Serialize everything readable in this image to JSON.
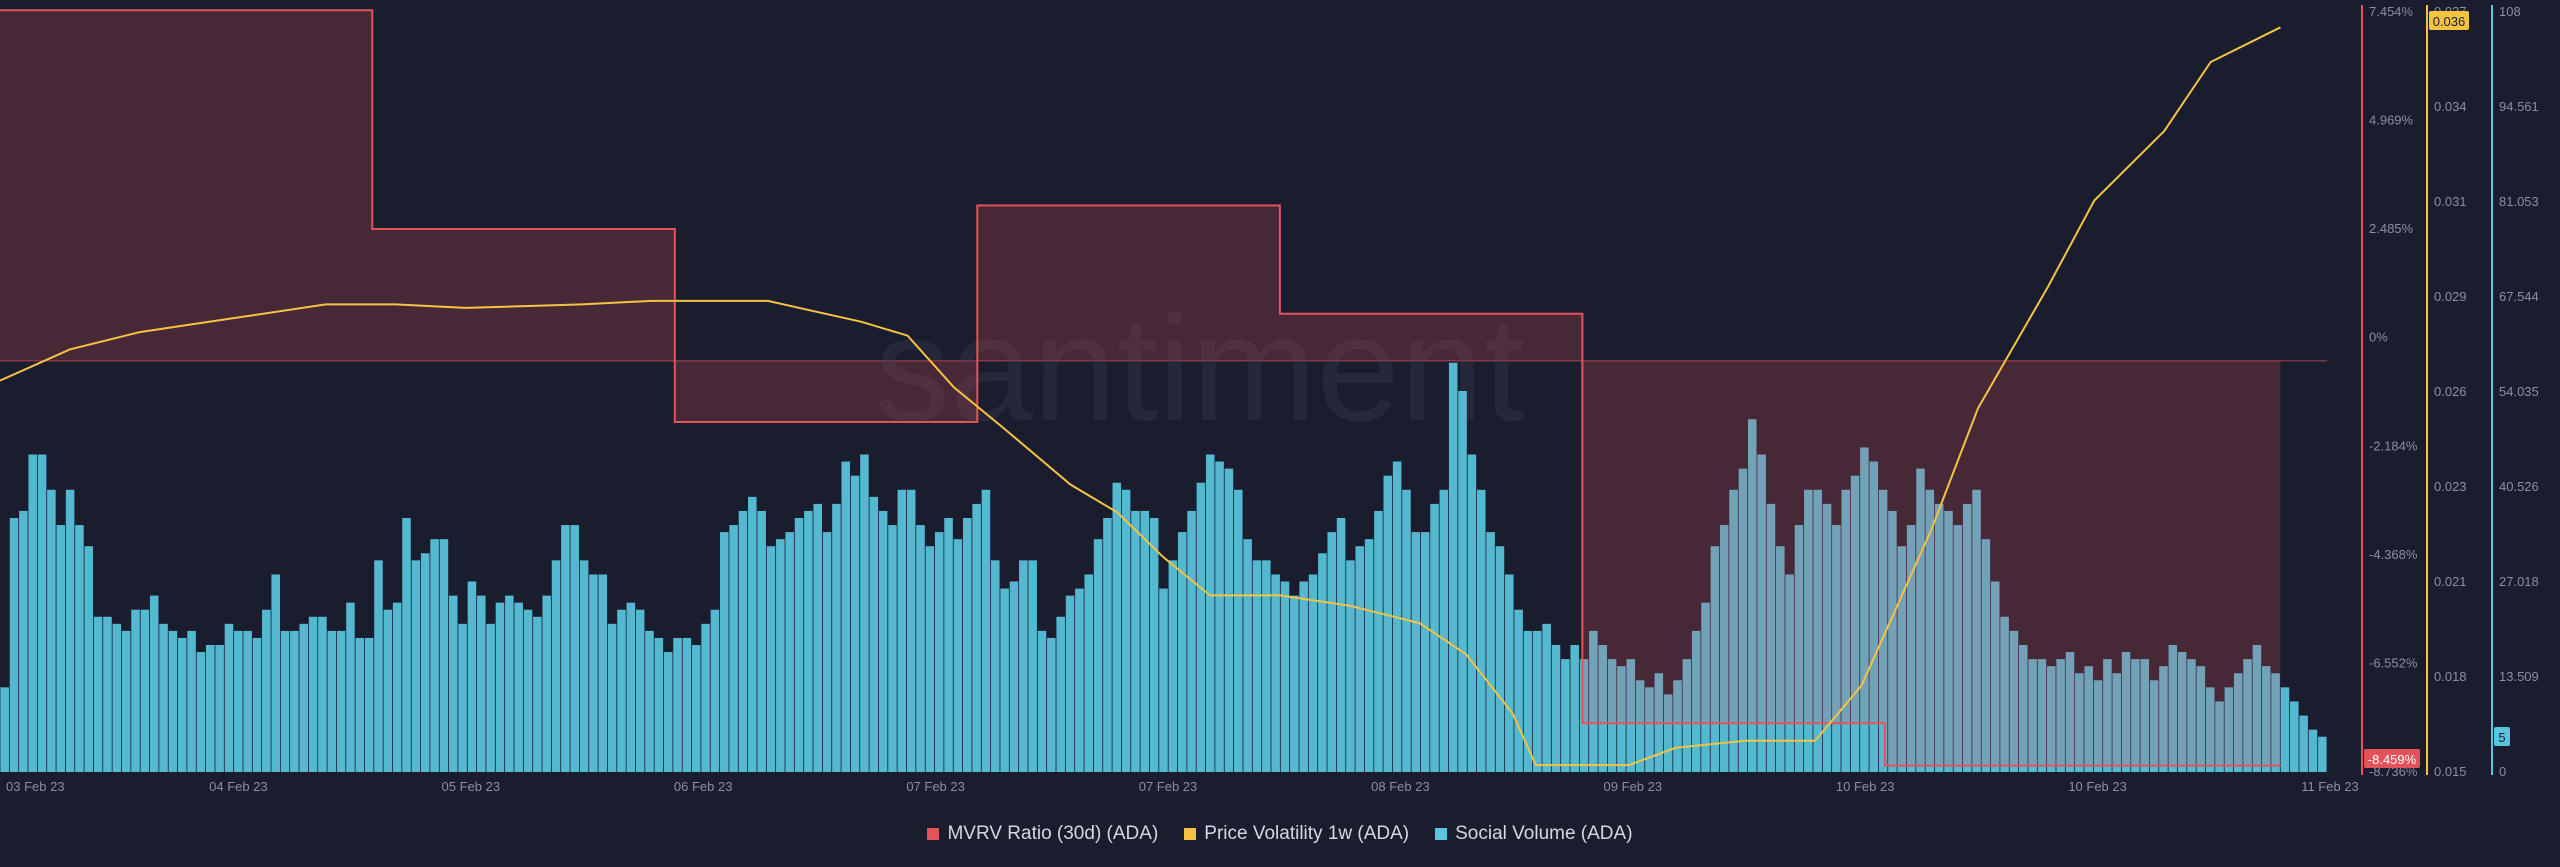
{
  "chart_data": {
    "type": "bar+line",
    "watermark": "santiment",
    "x_ticks": [
      "03 Feb 23",
      "04 Feb 23",
      "05 Feb 23",
      "06 Feb 23",
      "07 Feb 23",
      "07 Feb 23",
      "08 Feb 23",
      "09 Feb 23",
      "10 Feb 23",
      "10 Feb 23",
      "11 Feb 23"
    ],
    "axes": {
      "mvrv": {
        "ticks": [
          "7.454%",
          "4.969%",
          "2.485%",
          "0%",
          "-2.184%",
          "-4.368%",
          "-6.552%",
          "-8.736%"
        ],
        "range": [
          -8.736,
          7.454
        ],
        "current_label": "-8.459%",
        "color": "#e5535a"
      },
      "volatility": {
        "ticks": [
          "0.037",
          "0.034",
          "0.031",
          "0.029",
          "0.026",
          "0.023",
          "0.021",
          "0.018",
          "0.015"
        ],
        "range": [
          0.015,
          0.037
        ],
        "current_label": "0.036",
        "color": "#f5c344"
      },
      "social": {
        "ticks": [
          "108",
          "94.561",
          "81.053",
          "67.544",
          "54.035",
          "40.526",
          "27.018",
          "13.509",
          "0"
        ],
        "range": [
          0,
          108
        ],
        "current_label": "5",
        "color": "#59c6e0"
      }
    },
    "series": [
      {
        "name": "MVRV Ratio (30d) (ADA)",
        "type": "step-area",
        "color": "#e5535a",
        "x": [
          0,
          0.16,
          0.16,
          0.29,
          0.29,
          0.42,
          0.42,
          0.55,
          0.55,
          0.68,
          0.68,
          0.81,
          0.81,
          0.98
        ],
        "values": [
          7.45,
          7.45,
          2.8,
          2.8,
          -1.3,
          -1.3,
          3.3,
          3.3,
          1.0,
          1.0,
          -7.7,
          -7.7,
          -8.6,
          -8.6
        ]
      },
      {
        "name": "Price Volatility 1w (ADA)",
        "type": "line",
        "color": "#f5c344",
        "x": [
          0,
          0.03,
          0.06,
          0.1,
          0.14,
          0.17,
          0.2,
          0.25,
          0.28,
          0.3,
          0.33,
          0.35,
          0.37,
          0.39,
          0.41,
          0.43,
          0.46,
          0.48,
          0.5,
          0.52,
          0.55,
          0.58,
          0.61,
          0.63,
          0.65,
          0.66,
          0.7,
          0.72,
          0.75,
          0.78,
          0.8,
          0.83,
          0.85,
          0.88,
          0.9,
          0.93,
          0.95,
          0.98
        ],
        "values": [
          0.0263,
          0.0272,
          0.0277,
          0.0281,
          0.0285,
          0.0285,
          0.0284,
          0.0285,
          0.0286,
          0.0286,
          0.0286,
          0.0283,
          0.028,
          0.0276,
          0.0261,
          0.025,
          0.0233,
          0.0225,
          0.0212,
          0.0201,
          0.0201,
          0.0198,
          0.0193,
          0.0184,
          0.0167,
          0.0152,
          0.0152,
          0.0157,
          0.0159,
          0.0159,
          0.0175,
          0.022,
          0.0255,
          0.029,
          0.0315,
          0.0335,
          0.0355,
          0.0365
        ]
      },
      {
        "name": "Social Volume (ADA)",
        "type": "bar",
        "color": "#59c6e0",
        "values": [
          12,
          36,
          37,
          45,
          45,
          40,
          35,
          40,
          35,
          32,
          22,
          22,
          21,
          20,
          23,
          23,
          25,
          21,
          20,
          19,
          20,
          17,
          18,
          18,
          21,
          20,
          20,
          19,
          23,
          28,
          20,
          20,
          21,
          22,
          22,
          20,
          20,
          24,
          19,
          19,
          30,
          23,
          24,
          36,
          30,
          31,
          33,
          33,
          25,
          21,
          27,
          25,
          21,
          24,
          25,
          24,
          23,
          22,
          25,
          30,
          35,
          35,
          30,
          28,
          28,
          21,
          23,
          24,
          23,
          20,
          19,
          17,
          19,
          19,
          18,
          21,
          23,
          34,
          35,
          37,
          39,
          37,
          32,
          33,
          34,
          36,
          37,
          38,
          34,
          38,
          44,
          42,
          45,
          39,
          37,
          35,
          40,
          40,
          35,
          32,
          34,
          36,
          33,
          36,
          38,
          40,
          30,
          26,
          27,
          30,
          30,
          20,
          19,
          22,
          25,
          26,
          28,
          33,
          36,
          41,
          40,
          37,
          37,
          36,
          26,
          30,
          34,
          37,
          41,
          45,
          44,
          43,
          40,
          33,
          30,
          30,
          28,
          27,
          25,
          27,
          28,
          31,
          34,
          36,
          30,
          32,
          33,
          37,
          42,
          44,
          40,
          34,
          34,
          38,
          40,
          58,
          54,
          45,
          40,
          34,
          32,
          28,
          23,
          20,
          20,
          21,
          18,
          16,
          18,
          16,
          20,
          18,
          16,
          15,
          16,
          13,
          12,
          14,
          11,
          13,
          16,
          20,
          24,
          32,
          35,
          40,
          43,
          50,
          45,
          38,
          32,
          28,
          35,
          40,
          40,
          38,
          35,
          40,
          42,
          46,
          44,
          40,
          37,
          32,
          35,
          43,
          40,
          38,
          37,
          35,
          38,
          40,
          33,
          27,
          22,
          20,
          18,
          16,
          16,
          15,
          16,
          17,
          14,
          15,
          13,
          16,
          14,
          17,
          16,
          16,
          13,
          15,
          18,
          17,
          16,
          15,
          12,
          10,
          12,
          14,
          16,
          18,
          15,
          14,
          12,
          10,
          8,
          6,
          5
        ]
      }
    ],
    "legend": [
      {
        "label": "MVRV Ratio (30d) (ADA)",
        "color": "#e5535a"
      },
      {
        "label": "Price Volatility 1w (ADA)",
        "color": "#f5c344"
      },
      {
        "label": "Social Volume (ADA)",
        "color": "#59c6e0"
      }
    ]
  }
}
